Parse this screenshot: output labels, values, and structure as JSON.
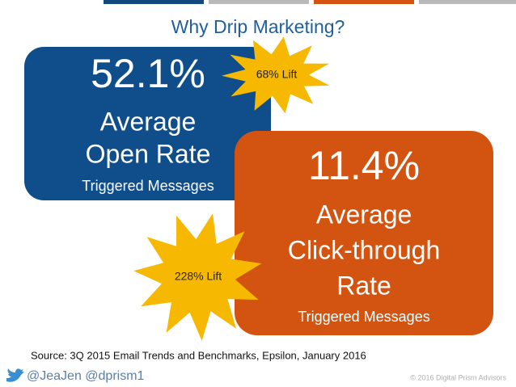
{
  "header": {
    "title": "Why Drip Marketing?"
  },
  "open_card": {
    "stat": "52.1%",
    "line1": "Average",
    "line2": "Open Rate",
    "note": "Triggered Messages"
  },
  "click_card": {
    "stat": "11.4%",
    "line1": "Average",
    "line2": "Click-through",
    "line3": "Rate",
    "note": "Triggered Messages"
  },
  "bursts": [
    "68% Lift",
    "228% Lift"
  ],
  "source": "Source: 3Q 2015 Email Trends and Benchmarks, Epsilon, January 2016",
  "footer": {
    "handles": "@JeaJen  @dprism1",
    "copyright": "© 2016 Digital Prism Advisors"
  }
}
